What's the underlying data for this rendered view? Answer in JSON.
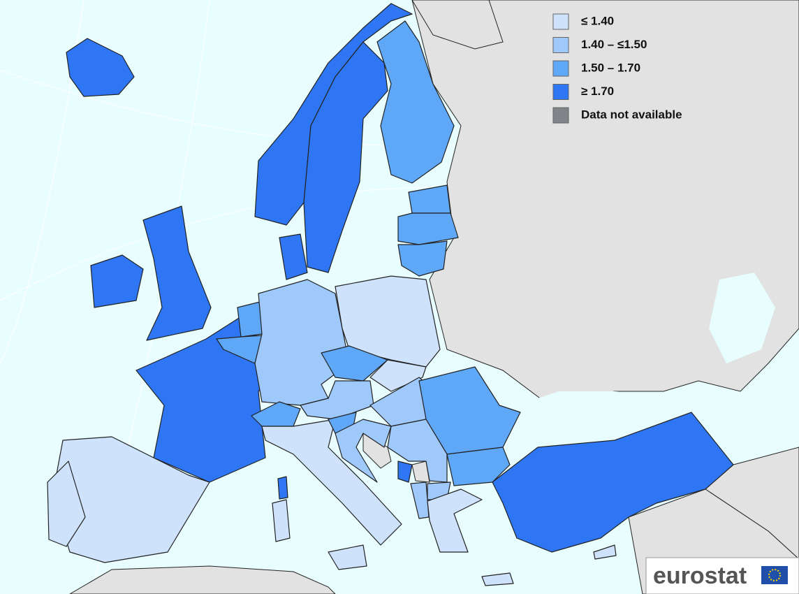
{
  "legend": {
    "items": [
      {
        "label": "≤ 1.40",
        "color": "#cfe2fb"
      },
      {
        "label": "1.40 – ≤1.50",
        "color": "#9fc8fb"
      },
      {
        "label": "1.50 – 1.70",
        "color": "#5fa8f8"
      },
      {
        "label": "≥ 1.70",
        "color": "#2f76f4"
      },
      {
        "label": "Data not available",
        "color": "#808388"
      }
    ]
  },
  "logo": {
    "text": "eurostat"
  }
}
